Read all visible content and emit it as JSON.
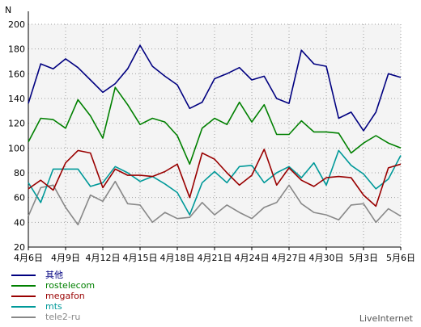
{
  "chart_data": {
    "type": "line",
    "ylabel": "N",
    "ylim": [
      20,
      200
    ],
    "yticks": [
      20,
      40,
      60,
      80,
      100,
      120,
      140,
      160,
      180,
      200
    ],
    "xticks": [
      "4月6日",
      "4月9日",
      "4月12日",
      "4月15日",
      "4月18日",
      "4月21日",
      "4月24日",
      "4月27日",
      "4月30日",
      "5月3日",
      "5月6日"
    ],
    "x": [
      "4月6日",
      "4月7日",
      "4月8日",
      "4月9日",
      "4月10日",
      "4月11日",
      "4月12日",
      "4月13日",
      "4月14日",
      "4月15日",
      "4月16日",
      "4月17日",
      "4月18日",
      "4月19日",
      "4月20日",
      "4月21日",
      "4月22日",
      "4月23日",
      "4月24日",
      "4月25日",
      "4月26日",
      "4月27日",
      "4月28日",
      "4月29日",
      "4月30日",
      "5月1日",
      "5月2日",
      "5月3日",
      "5月4日",
      "5月5日",
      "5月6日"
    ],
    "grid": true,
    "legend_position": "bottom-left",
    "series": [
      {
        "name": "其他",
        "color": "#000080",
        "values": [
          136,
          168,
          164,
          172,
          165,
          155,
          145,
          152,
          164,
          183,
          166,
          158,
          151,
          132,
          137,
          156,
          160,
          165,
          155,
          158,
          140,
          136,
          179,
          168,
          166,
          124,
          129,
          114,
          129,
          160,
          157
        ]
      },
      {
        "name": "rostelecom",
        "color": "#008000",
        "values": [
          105,
          124,
          123,
          116,
          139,
          126,
          108,
          149,
          135,
          119,
          124,
          121,
          110,
          87,
          116,
          124,
          119,
          137,
          121,
          135,
          111,
          111,
          122,
          113,
          113,
          112,
          96,
          104,
          110,
          104,
          100
        ]
      },
      {
        "name": "megafon",
        "color": "#990000",
        "values": [
          67,
          74,
          66,
          88,
          98,
          96,
          68,
          83,
          78,
          78,
          77,
          81,
          87,
          60,
          96,
          91,
          80,
          70,
          78,
          99,
          70,
          84,
          74,
          69,
          76,
          77,
          76,
          62,
          53,
          84,
          87
        ]
      },
      {
        "name": "mts",
        "color": "#009999",
        "values": [
          72,
          56,
          83,
          83,
          83,
          69,
          72,
          85,
          80,
          73,
          77,
          71,
          64,
          46,
          72,
          81,
          72,
          85,
          86,
          72,
          80,
          85,
          76,
          88,
          70,
          98,
          86,
          79,
          67,
          75,
          94
        ]
      },
      {
        "name": "tele2-ru",
        "color": "#888888",
        "values": [
          45,
          68,
          70,
          52,
          38,
          62,
          57,
          73,
          55,
          54,
          40,
          48,
          43,
          44,
          56,
          46,
          54,
          48,
          43,
          52,
          56,
          70,
          55,
          48,
          46,
          42,
          54,
          55,
          40,
          51,
          45
        ]
      }
    ]
  },
  "footer": {
    "brand": "LiveInternet"
  }
}
